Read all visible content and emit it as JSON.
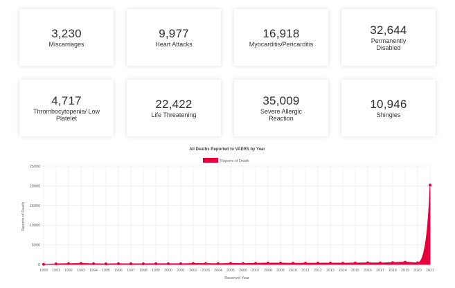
{
  "stats": [
    {
      "value": "3,230",
      "label": "Miscarriages"
    },
    {
      "value": "9,977",
      "label": "Heart Attacks"
    },
    {
      "value": "16,918",
      "label": "Myocarditis/Pericarditis"
    },
    {
      "value": "32,644",
      "label": "Permanently Disabled"
    },
    {
      "value": "4,717",
      "label": "Thrombocytopenia/ Low Platelet"
    },
    {
      "value": "22,422",
      "label": "Life Threatening"
    },
    {
      "value": "35,009",
      "label": "Severe Allergic Reaction"
    },
    {
      "value": "10,946",
      "label": "Shingles"
    }
  ],
  "colors": {
    "series": "#e8003d",
    "grid": "#e6e6e6",
    "axis_text": "#666666"
  },
  "chart_data": {
    "type": "area",
    "title": "All Deaths Reported to VAERS by Year",
    "xlabel": "Received Year",
    "ylabel": "Reports of Death",
    "ylim": [
      0,
      25000
    ],
    "yticks": [
      "0",
      "5000",
      "10000",
      "15000",
      "20000",
      "25000"
    ],
    "legend": "top",
    "categories": [
      "1990",
      "1991",
      "1992",
      "1993",
      "1994",
      "1995",
      "1996",
      "1997",
      "1998",
      "1999",
      "2000",
      "2001",
      "2002",
      "2003",
      "2004",
      "2005",
      "2006",
      "2007",
      "2008",
      "2009",
      "2010",
      "2011",
      "2012",
      "2013",
      "2014",
      "2015",
      "2016",
      "2017",
      "2018",
      "2019",
      "2020",
      "2021"
    ],
    "series": [
      {
        "name": "Reports of Death",
        "values": [
          40,
          150,
          230,
          270,
          200,
          160,
          190,
          170,
          180,
          200,
          190,
          200,
          260,
          240,
          220,
          280,
          240,
          290,
          360,
          350,
          300,
          320,
          340,
          360,
          340,
          380,
          420,
          390,
          480,
          600,
          420,
          20200
        ]
      }
    ]
  }
}
